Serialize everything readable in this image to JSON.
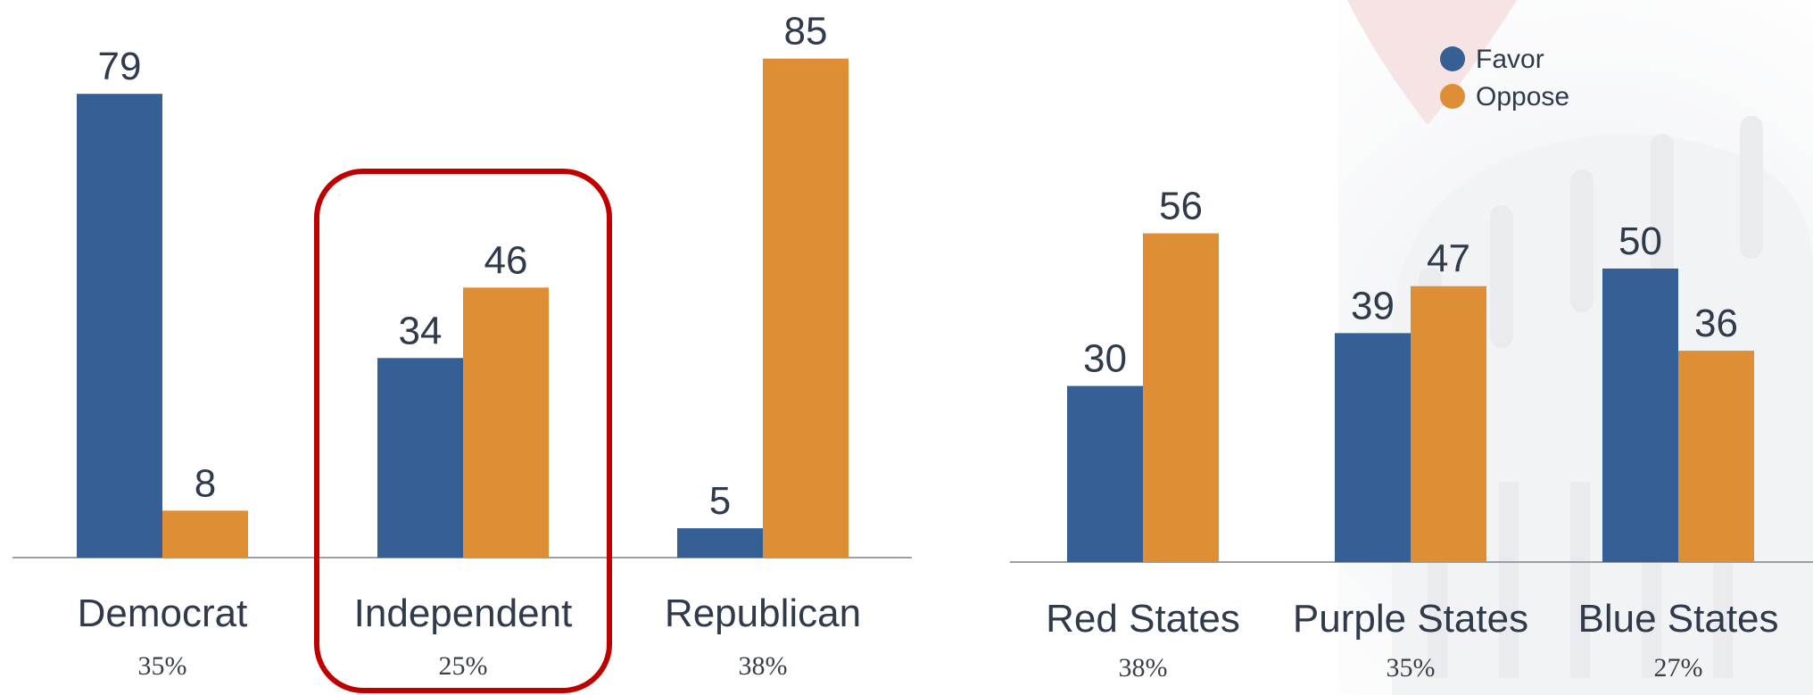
{
  "chart_data": [
    {
      "type": "bar",
      "categories": [
        "Democrat",
        "Independent",
        "Republican"
      ],
      "category_shares": [
        "35%",
        "25%",
        "38%"
      ],
      "series": [
        {
          "name": "Favor",
          "values": [
            79,
            34,
            5
          ]
        },
        {
          "name": "Oppose",
          "values": [
            8,
            46,
            85
          ]
        }
      ],
      "data_labels": true,
      "highlighted_category": "Independent",
      "ylim": [
        0,
        90
      ],
      "grid": false
    },
    {
      "type": "bar",
      "categories": [
        "Red States",
        "Purple States",
        "Blue States"
      ],
      "category_shares": [
        "38%",
        "35%",
        "27%"
      ],
      "series": [
        {
          "name": "Favor",
          "values": [
            30,
            39,
            50
          ]
        },
        {
          "name": "Oppose",
          "values": [
            56,
            47,
            36
          ]
        }
      ],
      "data_labels": true,
      "ylim": [
        0,
        90
      ],
      "grid": false,
      "legend": "top-right"
    }
  ],
  "colors": {
    "favor": "#365f96",
    "oppose": "#de8f36",
    "highlight": "#c00000"
  }
}
